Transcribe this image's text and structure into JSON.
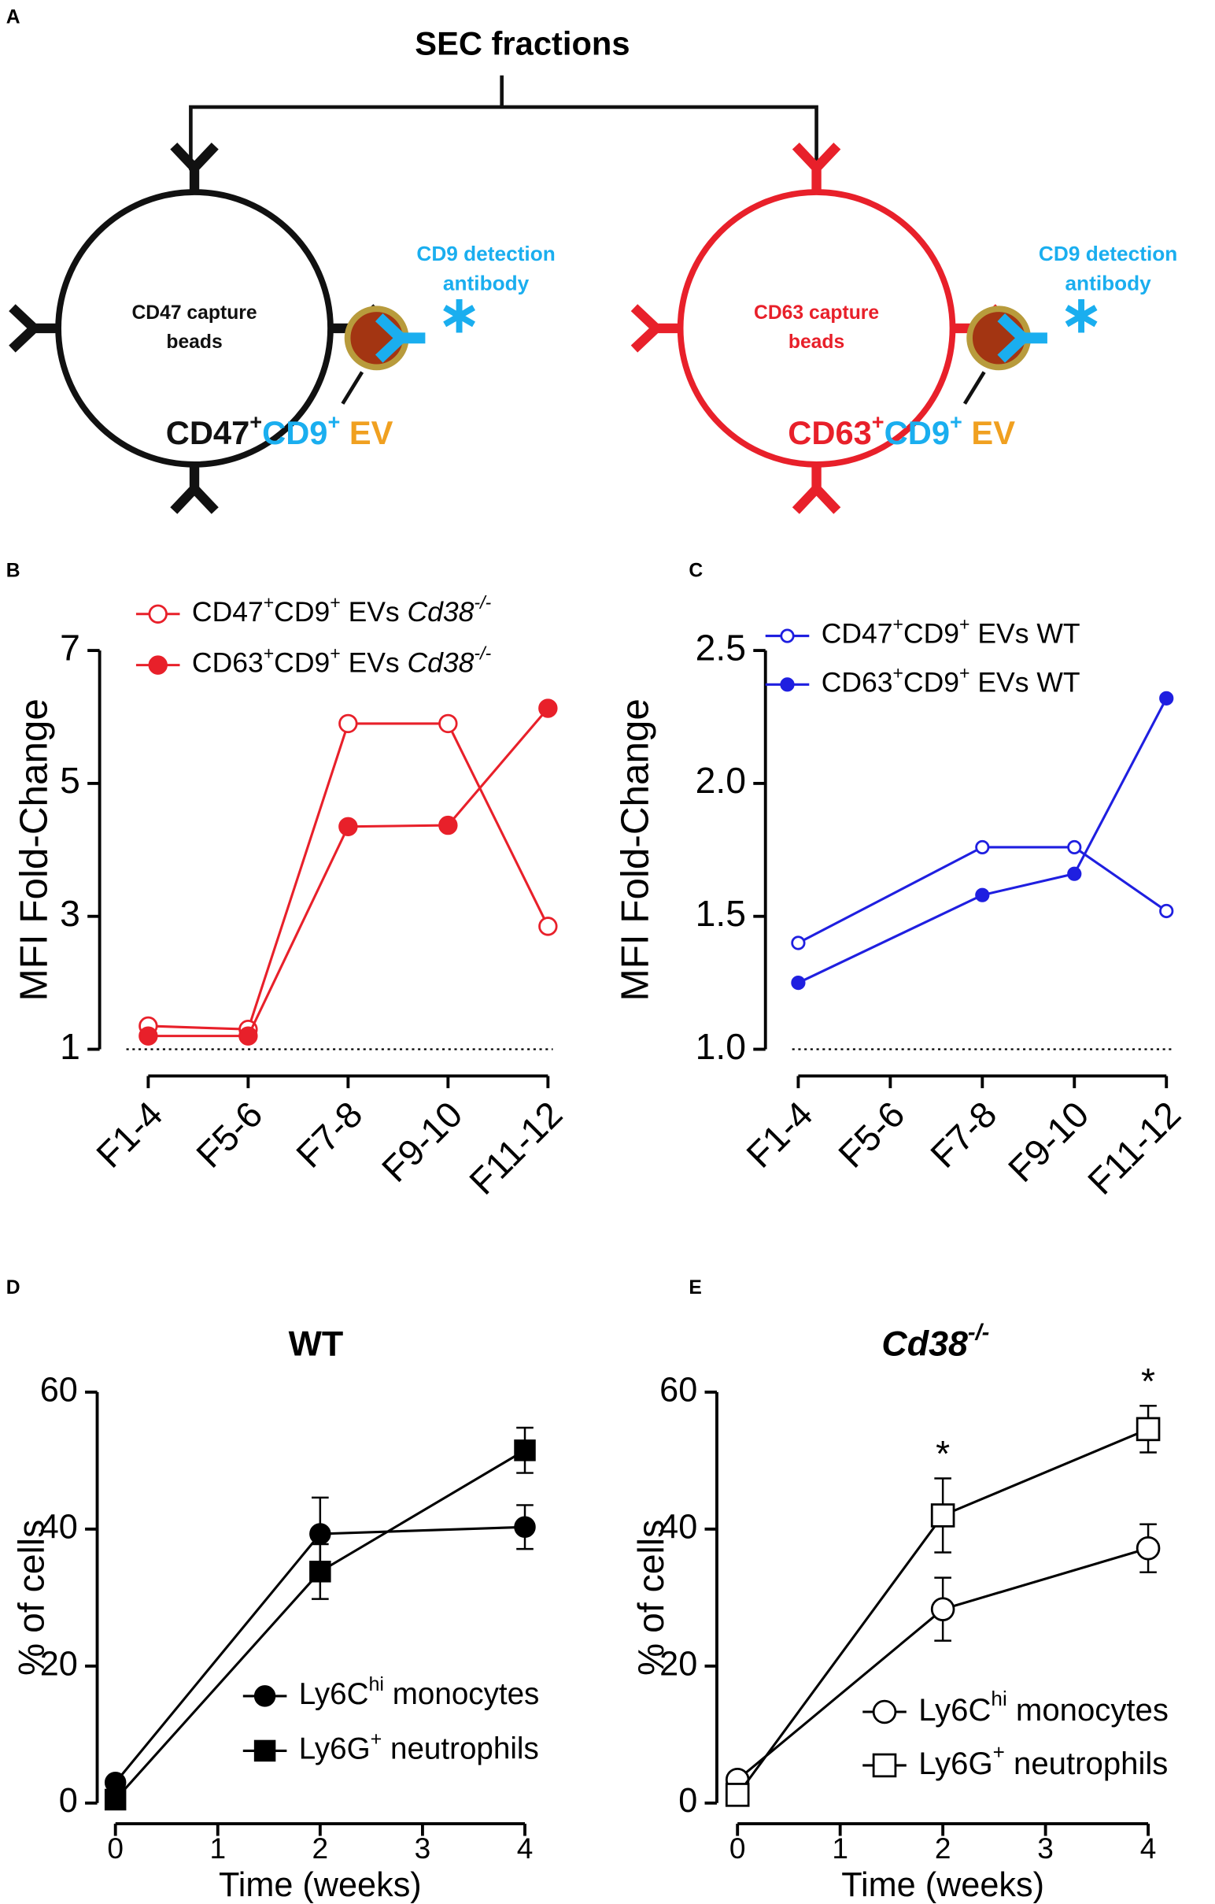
{
  "diagram": {
    "label": "A",
    "title": "SEC fractions",
    "left": {
      "bead_label": [
        "CD47 capture",
        "beads"
      ],
      "detection_label": [
        "CD9 detection",
        "antibody"
      ],
      "color": "#111111",
      "ev_label": [
        {
          "text": "CD47",
          "color": "#111111"
        },
        {
          "text": "+",
          "color": "#111111",
          "sup": true
        },
        {
          "text": "CD9",
          "color": "#1aaeef"
        },
        {
          "text": "+",
          "color": "#1aaeef",
          "sup": true
        },
        {
          "text": " EV",
          "color": "#f0a020"
        }
      ]
    },
    "right": {
      "bead_label": [
        "CD63 capture",
        "beads"
      ],
      "detection_label": [
        "CD9 detection",
        "antibody"
      ],
      "color": "#e8202a",
      "ev_label": [
        {
          "text": "CD63",
          "color": "#e8202a"
        },
        {
          "text": "+",
          "color": "#e8202a",
          "sup": true
        },
        {
          "text": "CD9",
          "color": "#1aaeef"
        },
        {
          "text": "+",
          "color": "#1aaeef",
          "sup": true
        },
        {
          "text": " EV",
          "color": "#f0a020"
        }
      ]
    }
  },
  "chart_data": [
    {
      "type": "line",
      "panel": "B",
      "ylabel": "MFI Fold-Change",
      "xlim": [
        1,
        5
      ],
      "xticks": [
        {
          "value": 1,
          "label": "F1-4"
        },
        {
          "value": 2,
          "label": "F5-6"
        },
        {
          "value": 3,
          "label": "F7-8"
        },
        {
          "value": 4,
          "label": "F9-10"
        },
        {
          "value": 5,
          "label": "F11-12"
        }
      ],
      "ylim": [
        1,
        7
      ],
      "yticks": [
        1,
        3,
        5,
        7
      ],
      "reference_line": 1,
      "series": [
        {
          "name": [
            {
              "text": "CD47"
            },
            {
              "text": "+",
              "sup": true
            },
            {
              "text": "CD9"
            },
            {
              "text": "+",
              "sup": true
            },
            {
              "text": " EVs "
            },
            {
              "text": "Cd38",
              "italic": true
            },
            {
              "text": "-/-",
              "sup": true,
              "italic": true
            }
          ],
          "color": "#e8202a",
          "marker": "circle",
          "filled": false,
          "x": [
            1,
            2,
            3,
            4,
            5
          ],
          "values": [
            1.35,
            1.3,
            5.9,
            5.9,
            2.85
          ]
        },
        {
          "name": [
            {
              "text": "CD63"
            },
            {
              "text": "+",
              "sup": true
            },
            {
              "text": "CD9"
            },
            {
              "text": "+",
              "sup": true
            },
            {
              "text": " EVs "
            },
            {
              "text": "Cd38",
              "italic": true
            },
            {
              "text": "-/-",
              "sup": true,
              "italic": true
            }
          ],
          "color": "#e8202a",
          "marker": "circle",
          "filled": true,
          "x": [
            1,
            2,
            3,
            4,
            5
          ],
          "values": [
            1.2,
            1.2,
            4.35,
            4.37,
            6.13
          ]
        }
      ]
    },
    {
      "type": "line",
      "panel": "C",
      "ylabel": "MFI Fold-Change",
      "xlim": [
        1,
        5
      ],
      "xticks": [
        {
          "value": 1,
          "label": "F1-4"
        },
        {
          "value": 2,
          "label": "F5-6"
        },
        {
          "value": 3,
          "label": "F7-8"
        },
        {
          "value": 4,
          "label": "F9-10"
        },
        {
          "value": 5,
          "label": "F11-12"
        }
      ],
      "ylim": [
        1,
        2.5
      ],
      "yticks": [
        {
          "value": 1,
          "label": "1.0"
        },
        {
          "value": 1.5,
          "label": "1.5"
        },
        {
          "value": 2,
          "label": "2.0"
        },
        {
          "value": 2.5,
          "label": "2.5"
        }
      ],
      "reference_line": 1,
      "series": [
        {
          "name": [
            {
              "text": "CD47"
            },
            {
              "text": "+",
              "sup": true
            },
            {
              "text": "CD9"
            },
            {
              "text": "+",
              "sup": true
            },
            {
              "text": " EVs WT"
            }
          ],
          "color": "#1f1fe0",
          "marker": "circle",
          "filled": false,
          "x": [
            1,
            3,
            4,
            5
          ],
          "values": [
            1.4,
            1.76,
            1.76,
            1.52
          ]
        },
        {
          "name": [
            {
              "text": "CD63"
            },
            {
              "text": "+",
              "sup": true
            },
            {
              "text": "CD9"
            },
            {
              "text": "+",
              "sup": true
            },
            {
              "text": " EVs WT"
            }
          ],
          "color": "#1f1fe0",
          "marker": "circle",
          "filled": true,
          "x": [
            1,
            3,
            4,
            5
          ],
          "values": [
            1.25,
            1.58,
            1.66,
            2.32
          ]
        }
      ]
    },
    {
      "type": "line",
      "panel": "D",
      "title": [
        {
          "text": "WT"
        }
      ],
      "ylabel": "% of cells",
      "xlabel": "Time (weeks)",
      "xlim": [
        0,
        4
      ],
      "xticks": [
        0,
        1,
        2,
        3,
        4
      ],
      "ylim": [
        0,
        60
      ],
      "yticks": [
        0,
        20,
        40,
        60
      ],
      "series": [
        {
          "name": [
            {
              "text": "Ly6C"
            },
            {
              "text": "hi",
              "sup": true
            },
            {
              "text": " monocytes"
            }
          ],
          "color": "#000000",
          "marker": "circle",
          "filled": true,
          "x": [
            0,
            2,
            4
          ],
          "values": [
            3,
            39.3,
            40.3
          ],
          "errors": [
            0,
            5.3,
            3.2
          ]
        },
        {
          "name": [
            {
              "text": "Ly6G"
            },
            {
              "text": "+",
              "sup": true
            },
            {
              "text": " neutrophils"
            }
          ],
          "color": "#000000",
          "marker": "square",
          "filled": true,
          "x": [
            0,
            2,
            4
          ],
          "values": [
            0.5,
            33.8,
            51.5
          ],
          "errors": [
            0,
            4,
            3.3
          ]
        }
      ]
    },
    {
      "type": "line",
      "panel": "E",
      "title": [
        {
          "text": "Cd38",
          "italic": true
        },
        {
          "text": "-/-",
          "sup": true,
          "italic": true
        }
      ],
      "ylabel": "% of cells",
      "xlabel": "Time (weeks)",
      "xlim": [
        0,
        4
      ],
      "xticks": [
        0,
        1,
        2,
        3,
        4
      ],
      "ylim": [
        0,
        60
      ],
      "yticks": [
        0,
        20,
        40,
        60
      ],
      "series": [
        {
          "name": [
            {
              "text": "Ly6C"
            },
            {
              "text": "hi",
              "sup": true
            },
            {
              "text": " monocytes"
            }
          ],
          "color": "#000000",
          "marker": "circle",
          "filled": false,
          "x": [
            0,
            2,
            4
          ],
          "values": [
            3.4,
            28.3,
            37.2
          ],
          "errors": [
            0,
            4.6,
            3.5
          ]
        },
        {
          "name": [
            {
              "text": "Ly6G"
            },
            {
              "text": "+",
              "sup": true
            },
            {
              "text": " neutrophils"
            }
          ],
          "color": "#000000",
          "marker": "square",
          "filled": false,
          "x": [
            0,
            2,
            4
          ],
          "values": [
            1.2,
            42,
            54.6
          ],
          "errors": [
            0,
            5.4,
            3.4
          ]
        }
      ],
      "annotations": [
        {
          "text": "*",
          "x": 2
        },
        {
          "text": "*",
          "x": 4
        }
      ]
    }
  ]
}
